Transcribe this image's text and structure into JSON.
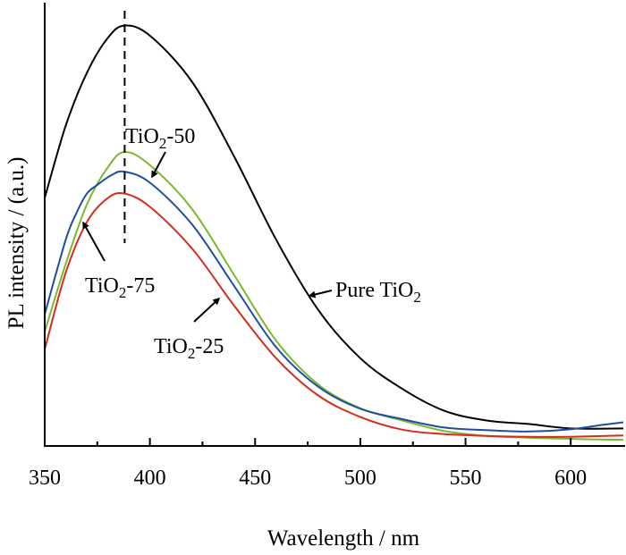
{
  "chart_data": {
    "type": "line",
    "xlabel": "Wavelength / nm",
    "ylabel": "PL intensity / (a.u.)",
    "xlim": [
      350,
      625
    ],
    "ylim": [
      0,
      100
    ],
    "x_ticks": [
      350,
      400,
      450,
      500,
      550,
      600
    ],
    "y_ticks_shown": false,
    "grid": false,
    "legend": "none (series labelled by arrows)",
    "reference_line": {
      "x": 388,
      "style": "dashed",
      "color": "#000000"
    },
    "series": [
      {
        "name": "Pure TiO2",
        "color": "#000000",
        "x": [
          350,
          360,
          370,
          380,
          388,
          400,
          420,
          440,
          460,
          480,
          500,
          520,
          540,
          560,
          580,
          600,
          625
        ],
        "y": [
          56.5,
          73,
          85,
          93,
          95.8,
          93.5,
          83,
          66,
          47,
          31,
          20,
          13,
          8,
          5.8,
          5,
          4,
          4
        ]
      },
      {
        "name": "TiO2-50",
        "color": "#7ab82e",
        "x": [
          350,
          360,
          370,
          380,
          388,
          400,
          420,
          440,
          460,
          480,
          500,
          520,
          540,
          560,
          580,
          600,
          625
        ],
        "y": [
          26,
          41.5,
          55,
          63.5,
          67,
          64,
          54,
          39,
          24,
          14,
          8.6,
          5.8,
          3.4,
          2.3,
          1.9,
          1.6,
          1.4
        ]
      },
      {
        "name": "TiO2-75",
        "color": "#1f4ea0",
        "x": [
          350,
          360,
          365,
          370,
          375,
          382,
          388,
          400,
          420,
          440,
          460,
          480,
          500,
          520,
          540,
          560,
          580,
          600,
          615,
          625
        ],
        "y": [
          30,
          47,
          53,
          57.5,
          59.5,
          61.8,
          62.5,
          60,
          50.5,
          36.5,
          22.5,
          13.5,
          8.5,
          6.1,
          4.2,
          3.6,
          3.3,
          3.8,
          4.8,
          5.4
        ]
      },
      {
        "name": "TiO2-25",
        "color": "#d62c20",
        "x": [
          350,
          360,
          370,
          380,
          388,
          400,
          420,
          440,
          460,
          480,
          500,
          520,
          540,
          560,
          580,
          600,
          625
        ],
        "y": [
          22,
          39.5,
          51,
          56.5,
          57.5,
          54.5,
          45,
          32,
          20,
          11.5,
          6.6,
          3.7,
          2.7,
          2.3,
          2.1,
          2.1,
          2.4
        ]
      }
    ],
    "annotations": [
      {
        "series": "Pure TiO2",
        "base": "Pure TiO",
        "sub": "2",
        "tail": ""
      },
      {
        "series": "TiO2-50",
        "base": "TiO",
        "sub": "2",
        "tail": "-50"
      },
      {
        "series": "TiO2-75",
        "base": "TiO",
        "sub": "2",
        "tail": "-75"
      },
      {
        "series": "TiO2-25",
        "base": "TiO",
        "sub": "2",
        "tail": "-25"
      }
    ]
  }
}
